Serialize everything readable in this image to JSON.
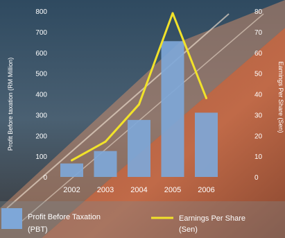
{
  "chart_data": {
    "type": "bar",
    "categories": [
      "2002",
      "2003",
      "2004",
      "2005",
      "2006"
    ],
    "series": [
      {
        "name": "Profit Before Taxation (PBT)",
        "type": "bar",
        "axis": "left",
        "values": [
          65,
          125,
          275,
          655,
          310
        ],
        "color": "#7ea7d8"
      },
      {
        "name": "Earnings Per Share (Sen)",
        "type": "line",
        "axis": "right",
        "values": [
          8,
          17,
          35,
          79,
          38
        ],
        "color": "#f1e22a"
      }
    ],
    "ylabel": "Profit Before taxation (RM Million)",
    "y2label": "Earnings Per Share (Sen)",
    "ylim": [
      0,
      800
    ],
    "y2lim": [
      0,
      80
    ],
    "yticks": [
      "0",
      "100",
      "200",
      "300",
      "400",
      "500",
      "600",
      "700",
      "800"
    ],
    "y2ticks": [
      "0",
      "10",
      "20",
      "30",
      "40",
      "50",
      "60",
      "70",
      "80"
    ],
    "legend": {
      "position": "bottom",
      "bar_label_line1": "Profit Before Taxation",
      "bar_label_line2": "(PBT)",
      "line_label_line1": "Earnings Per Share",
      "line_label_line2": "(Sen)"
    },
    "grid": false
  }
}
